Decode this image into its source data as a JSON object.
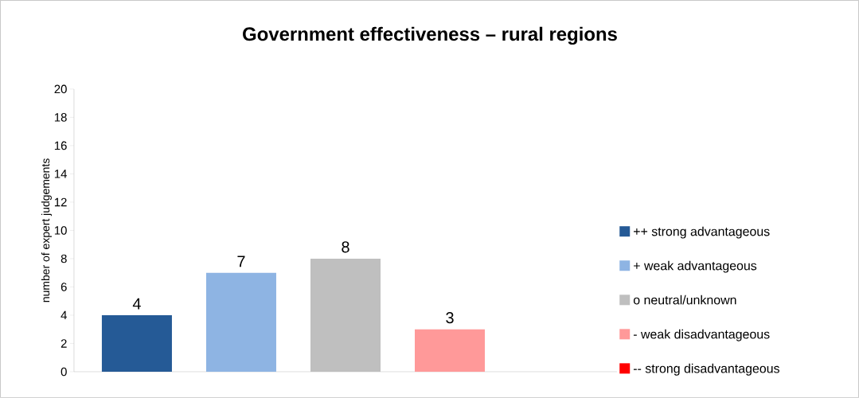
{
  "chart_data": {
    "type": "bar",
    "title": "Government effectiveness – rural regions",
    "ylabel": "number of expert judgements",
    "categories": [
      null
    ],
    "series": [
      {
        "name": "++ strong advantageous",
        "color": "#255a96",
        "values": [
          4
        ],
        "value_labels": [
          "4"
        ]
      },
      {
        "name": "+ weak advantageous",
        "color": "#8eb4e3",
        "values": [
          7
        ],
        "value_labels": [
          "7"
        ]
      },
      {
        "name": "o neutral/unknown",
        "color": "#bfbfbf",
        "values": [
          8
        ],
        "value_labels": [
          "8"
        ]
      },
      {
        "name": "- weak disadvantageous",
        "color": "#ff9999",
        "values": [
          3
        ],
        "value_labels": [
          "3"
        ]
      },
      {
        "name": "-- strong disadvantageous",
        "color": "#ff0000",
        "values": [
          0
        ],
        "value_labels": [
          null
        ]
      }
    ],
    "ylim": [
      0,
      20
    ],
    "yticks": [
      0,
      2,
      4,
      6,
      8,
      10,
      12,
      14,
      16,
      18,
      20
    ],
    "grid": false,
    "legend": "right"
  }
}
